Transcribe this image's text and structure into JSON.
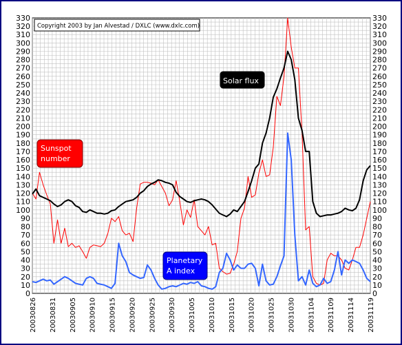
{
  "chart_data": {
    "type": "line",
    "copyright": "Copyright 2003 by Jan Alvestad / DXLC (www.dxlc.com)",
    "ylim": [
      0,
      330
    ],
    "y_ticks": [
      0,
      10,
      20,
      30,
      40,
      50,
      60,
      70,
      80,
      90,
      100,
      110,
      120,
      130,
      140,
      150,
      160,
      170,
      180,
      190,
      200,
      210,
      220,
      230,
      240,
      250,
      260,
      270,
      280,
      290,
      300,
      310,
      320,
      330
    ],
    "x_range": [
      "20030826",
      "20031119"
    ],
    "x_tick_labels": [
      "20030826",
      "20030831",
      "20030905",
      "20030910",
      "20030915",
      "20030920",
      "20030925",
      "20030930",
      "20031005",
      "20031010",
      "20031015",
      "20031020",
      "20031025",
      "20031030",
      "20031104",
      "20031109",
      "20031114",
      "20031119"
    ],
    "grid": true,
    "series": [
      {
        "name": "Solar flux",
        "color": "#000000",
        "label_bg": "#000000",
        "label_fg": "#ffffff",
        "values": [
          119,
          125,
          117,
          115,
          113,
          111,
          107,
          104,
          106,
          110,
          112,
          110,
          105,
          103,
          98,
          97,
          100,
          98,
          96,
          96,
          95,
          96,
          99,
          100,
          104,
          107,
          110,
          111,
          112,
          115,
          120,
          123,
          128,
          131,
          133,
          136,
          135,
          133,
          132,
          130,
          121,
          116,
          113,
          110,
          109,
          111,
          112,
          113,
          112,
          110,
          106,
          101,
          96,
          94,
          92,
          95,
          100,
          98,
          104,
          110,
          122,
          135,
          150,
          155,
          180,
          192,
          210,
          235,
          245,
          258,
          270,
          290,
          280,
          256,
          210,
          195,
          170,
          170,
          110,
          96,
          92,
          93,
          94,
          94,
          95,
          96,
          98,
          102,
          100,
          99,
          102,
          112,
          135,
          148,
          153
        ]
      },
      {
        "name": "Sunspot number",
        "color": "#ff0000",
        "label_bg": "#ff0000",
        "label_fg": "#ffffff",
        "values": [
          120,
          113,
          145,
          130,
          118,
          107,
          60,
          88,
          60,
          78,
          56,
          60,
          55,
          57,
          50,
          42,
          55,
          58,
          57,
          56,
          60,
          72,
          90,
          86,
          92,
          75,
          70,
          72,
          62,
          102,
          131,
          133,
          133,
          132,
          130,
          136,
          128,
          120,
          105,
          112,
          135,
          110,
          82,
          100,
          91,
          112,
          80,
          75,
          70,
          80,
          58,
          60,
          30,
          26,
          23,
          24,
          35,
          50,
          90,
          102,
          140,
          115,
          118,
          144,
          160,
          140,
          142,
          175,
          236,
          225,
          260,
          330,
          295,
          270,
          270,
          192,
          76,
          80,
          20,
          12,
          10,
          12,
          40,
          48,
          45,
          45,
          40,
          30,
          28,
          40,
          55,
          55,
          70,
          90,
          110
        ]
      },
      {
        "name": "Planetary A index",
        "color": "#3366ff",
        "label_bg": "#0000ff",
        "label_fg": "#ffffff",
        "values": [
          14,
          13,
          15,
          17,
          15,
          16,
          11,
          14,
          17,
          20,
          18,
          15,
          12,
          11,
          10,
          18,
          20,
          18,
          12,
          11,
          10,
          8,
          6,
          12,
          60,
          45,
          38,
          25,
          22,
          20,
          18,
          19,
          34,
          28,
          18,
          10,
          5,
          6,
          8,
          9,
          8,
          10,
          12,
          11,
          13,
          12,
          14,
          9,
          8,
          6,
          5,
          8,
          25,
          30,
          48,
          40,
          28,
          34,
          30,
          30,
          35,
          36,
          30,
          9,
          35,
          15,
          10,
          11,
          20,
          33,
          45,
          192,
          160,
          70,
          15,
          20,
          10,
          28,
          12,
          8,
          10,
          18,
          12,
          14,
          28,
          50,
          22,
          40,
          36,
          40,
          38,
          36,
          28,
          18,
          14
        ]
      }
    ]
  }
}
